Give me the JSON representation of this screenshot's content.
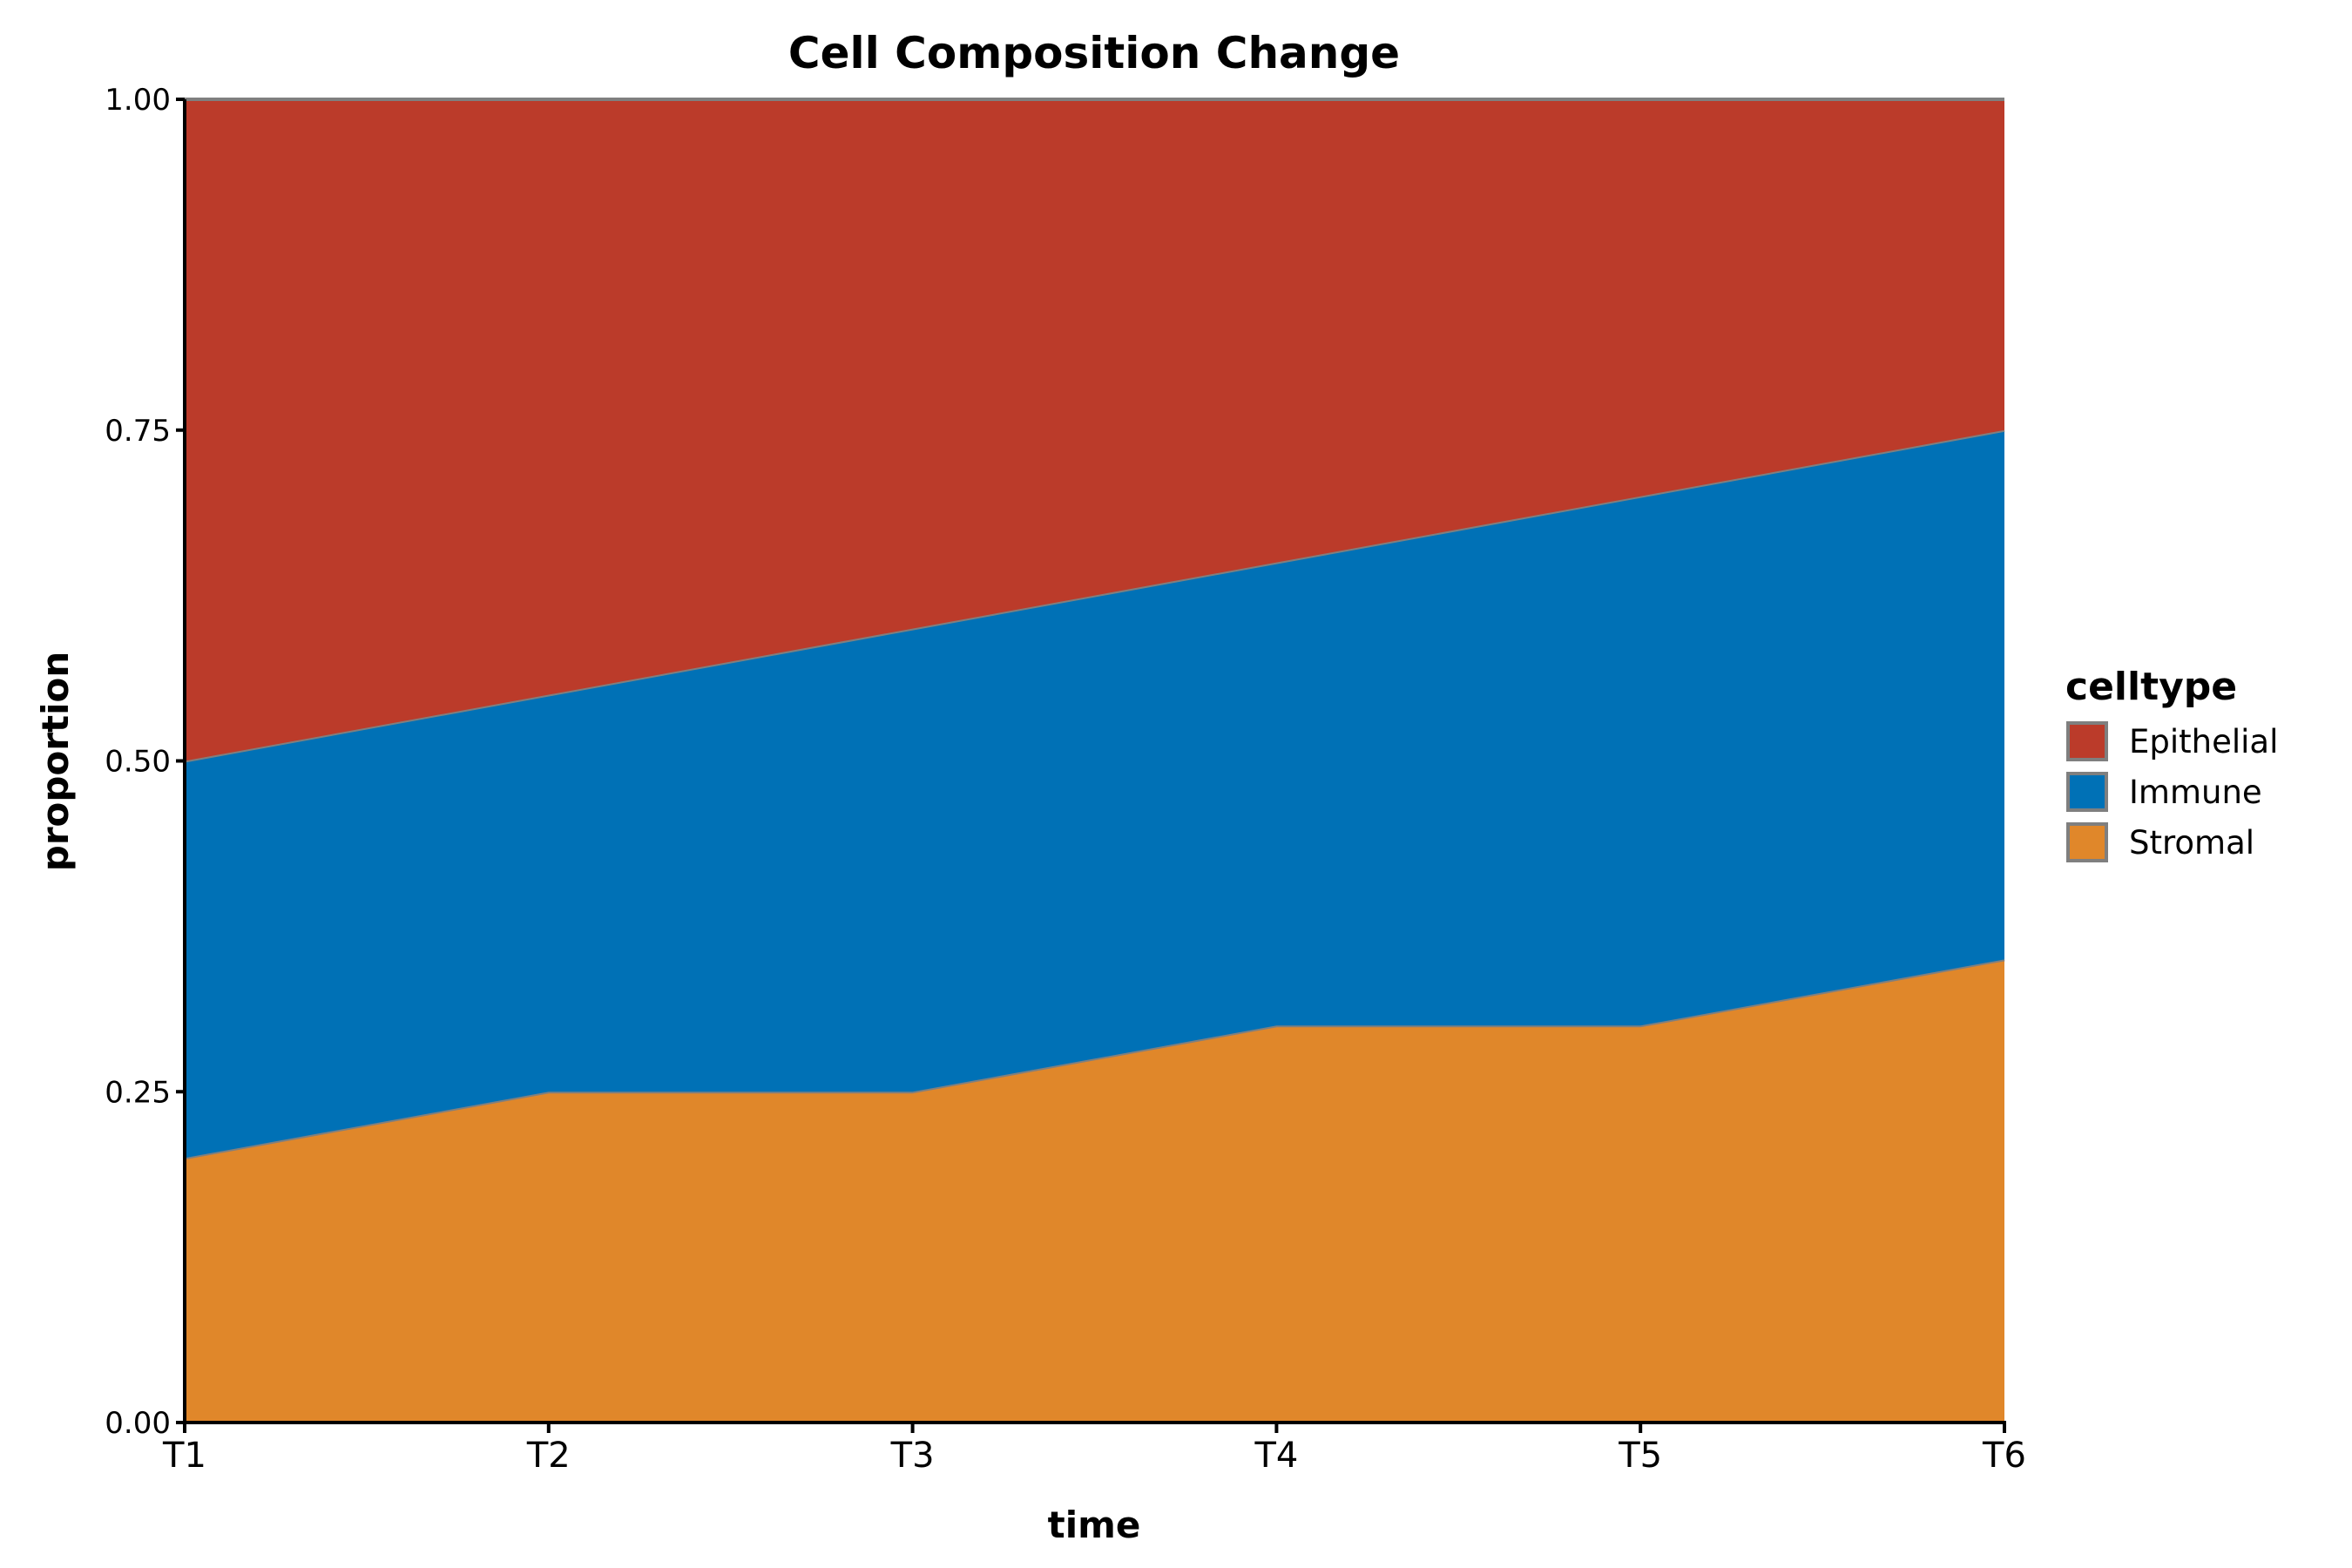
{
  "chart_data": {
    "type": "area",
    "stacked": true,
    "title": "Cell Composition Change",
    "xlabel": "time",
    "ylabel": "proportion",
    "categories": [
      "T1",
      "T2",
      "T3",
      "T4",
      "T5",
      "T6"
    ],
    "ylim": [
      0,
      1
    ],
    "yticks": [
      "0.00",
      "0.25",
      "0.50",
      "0.75",
      "1.00"
    ],
    "ytick_values": [
      0,
      0.25,
      0.5,
      0.75,
      1.0
    ],
    "grid": false,
    "legend": {
      "title": "celltype",
      "placement": "right"
    },
    "series": [
      {
        "name": "Epithelial",
        "color": "#BB3B2A",
        "values": [
          0.5,
          0.45,
          0.4,
          0.35,
          0.3,
          0.25
        ]
      },
      {
        "name": "Immune",
        "color": "#0071B6",
        "values": [
          0.3,
          0.3,
          0.35,
          0.35,
          0.4,
          0.4
        ]
      },
      {
        "name": "Stromal",
        "color": "#E0872A",
        "values": [
          0.2,
          0.25,
          0.25,
          0.3,
          0.3,
          0.35
        ]
      }
    ],
    "outline_color": "#7F7F7F"
  }
}
